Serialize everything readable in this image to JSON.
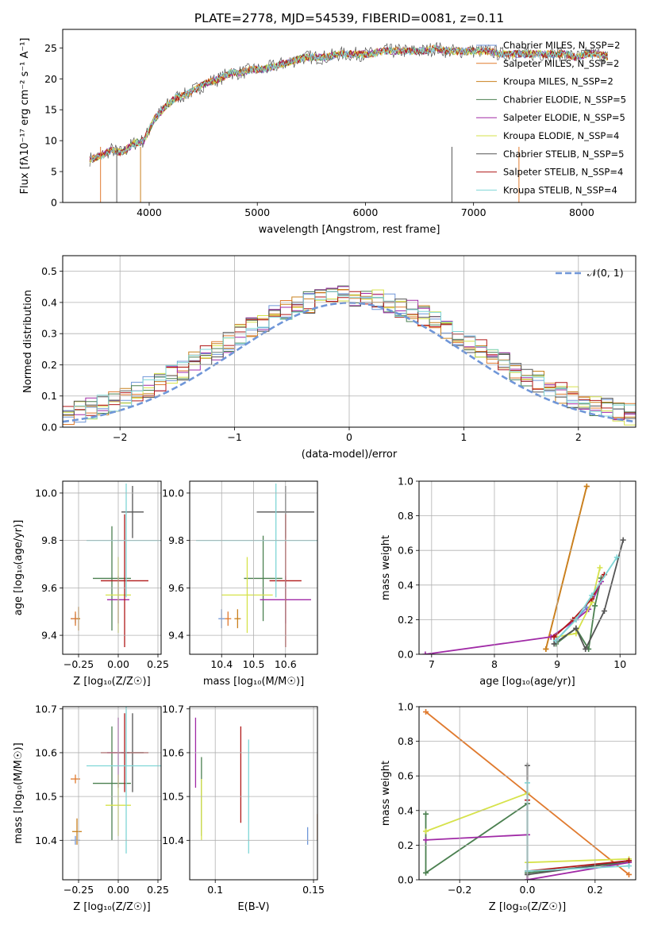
{
  "title": "PLATE=2778, MJD=54539, FIBERID=0081, z=0.11",
  "model_colors": [
    "#6f96d8",
    "#e07a2e",
    "#c9811e",
    "#4b8050",
    "#a02aa6",
    "#d6e24a",
    "#555555",
    "#b01818",
    "#7fd6d6"
  ],
  "chart_data": [
    {
      "id": "spectrum",
      "type": "line",
      "title": "PLATE=2778, MJD=54539, FIBERID=0081, z=0.11",
      "xlabel": "wavelength [Angstrom, rest frame]",
      "ylabel": "Flux [fλ10⁻¹⁷ erg cm⁻² s⁻¹ A⁻¹]",
      "xlim": [
        3200,
        8500
      ],
      "ylim": [
        0,
        28
      ],
      "xticks": [
        4000,
        5000,
        6000,
        7000,
        8000
      ],
      "yticks": [
        0,
        5,
        10,
        15,
        20,
        25
      ],
      "grid": false,
      "legend_position": "right",
      "legend": [
        "Chabrier MILES, N_SSP=2",
        "Salpeter MILES, N_SSP=2",
        "Kroupa MILES, N_SSP=2",
        "Chabrier ELODIE, N_SSP=5",
        "Salpeter ELODIE, N_SSP=5",
        "Kroupa ELODIE, N_SSP=4",
        "Chabrier STELIB, N_SSP=5",
        "Salpeter STELIB, N_SSP=4",
        "Kroupa STELIB, N_SSP=4"
      ],
      "x": [
        3450,
        3550,
        3650,
        3750,
        3850,
        3950,
        4050,
        4150,
        4250,
        4350,
        4450,
        4550,
        4650,
        4750,
        4850,
        4950,
        5050,
        5150,
        5250,
        5350,
        5450,
        5550,
        5650,
        5750,
        5850,
        5950,
        6050,
        6150,
        6250,
        6350,
        6450,
        6550,
        6650,
        6750,
        6850,
        6950,
        7050,
        7150,
        7250,
        7350,
        7450,
        7550,
        7650,
        7750,
        7850,
        7950,
        8050,
        8150,
        8250
      ],
      "y": [
        7.0,
        7.5,
        8.5,
        8.0,
        9.5,
        10.0,
        13.5,
        15.5,
        17.0,
        17.5,
        18.5,
        19.5,
        20.0,
        21.0,
        21.0,
        21.5,
        21.5,
        22.0,
        22.5,
        23.0,
        23.5,
        23.5,
        23.5,
        24.0,
        24.0,
        24.0,
        24.0,
        24.5,
        24.5,
        24.5,
        24.5,
        24.5,
        25.0,
        24.5,
        24.5,
        24.5,
        24.5,
        24.5,
        24.0,
        24.0,
        24.0,
        24.0,
        24.0,
        24.0,
        24.0,
        23.5,
        24.0,
        24.0,
        23.5
      ]
    },
    {
      "id": "residuals",
      "type": "histogram",
      "xlabel": "(data-model)/error",
      "ylabel": "Normed distribution",
      "xlim": [
        -2.5,
        2.5
      ],
      "ylim": [
        0,
        0.55
      ],
      "xticks": [
        -2,
        -1,
        0,
        1,
        2
      ],
      "yticks": [
        0.0,
        0.1,
        0.2,
        0.3,
        0.4,
        0.5
      ],
      "grid": true,
      "legend_position": "top-right",
      "legend": [
        "𝒩(0, 1)"
      ],
      "bin_width": 0.1
    },
    {
      "id": "age-vs-Z",
      "type": "scatter",
      "xlabel": "Z [log₁₀(Z/Z☉)]",
      "ylabel": "age  [log₁₀(age/yr)]",
      "xlim": [
        -0.35,
        0.27
      ],
      "ylim": [
        9.32,
        10.05
      ],
      "xticks": [
        -0.25,
        0.0,
        0.25
      ],
      "xtick_labels": [
        "−0.25",
        "0.00",
        "0.25"
      ],
      "yticks": [
        9.4,
        9.6,
        9.8,
        10.0
      ],
      "grid": true,
      "points": [
        {
          "model": 0,
          "x": -0.27,
          "y": 9.47,
          "xerr": 0.03,
          "yerr": 0.02
        },
        {
          "model": 1,
          "x": -0.27,
          "y": 9.47,
          "xerr": 0.03,
          "yerr": 0.03
        },
        {
          "model": 2,
          "x": -0.25,
          "y": 9.47,
          "xerr": 0.01,
          "yerr": 0.05
        },
        {
          "model": 3,
          "x": -0.04,
          "y": 9.64,
          "xerr": 0.12,
          "yerr": 0.22
        },
        {
          "model": 4,
          "x": 0.0,
          "y": 9.55,
          "xerr": 0.07,
          "yerr": 0.1
        },
        {
          "model": 5,
          "x": 0.0,
          "y": 9.57,
          "xerr": 0.08,
          "yerr": 0.16
        },
        {
          "model": 6,
          "x": 0.09,
          "y": 9.92,
          "xerr": 0.07,
          "yerr": 0.11
        },
        {
          "model": 7,
          "x": 0.04,
          "y": 9.63,
          "xerr": 0.15,
          "yerr": 0.28
        },
        {
          "model": 8,
          "x": 0.05,
          "y": 9.8,
          "xerr": 0.25,
          "yerr": 0.24
        }
      ]
    },
    {
      "id": "age-vs-mass",
      "type": "scatter",
      "xlabel": "mass [log₁₀(M/M☉)]",
      "ylabel": "",
      "xlim": [
        10.3,
        10.7
      ],
      "ylim": [
        9.32,
        10.05
      ],
      "xticks": [
        10.4,
        10.5,
        10.6
      ],
      "yticks": [
        9.4,
        9.6,
        9.8,
        10.0
      ],
      "grid": true,
      "points": [
        {
          "model": 0,
          "x": 10.4,
          "y": 9.47,
          "xerr": 0.01,
          "yerr": 0.04
        },
        {
          "model": 1,
          "x": 10.42,
          "y": 9.47,
          "xerr": 0.01,
          "yerr": 0.03
        },
        {
          "model": 2,
          "x": 10.45,
          "y": 9.47,
          "xerr": 0.01,
          "yerr": 0.04
        },
        {
          "model": 3,
          "x": 10.53,
          "y": 9.64,
          "xerr": 0.06,
          "yerr": 0.18
        },
        {
          "model": 4,
          "x": 10.6,
          "y": 9.55,
          "xerr": 0.08,
          "yerr": 0.1
        },
        {
          "model": 5,
          "x": 10.48,
          "y": 9.57,
          "xerr": 0.08,
          "yerr": 0.16
        },
        {
          "model": 6,
          "x": 10.6,
          "y": 9.92,
          "xerr": 0.09,
          "yerr": 0.11
        },
        {
          "model": 7,
          "x": 10.6,
          "y": 9.63,
          "xerr": 0.05,
          "yerr": 0.28
        },
        {
          "model": 8,
          "x": 10.57,
          "y": 9.8,
          "xerr": 0.25,
          "yerr": 0.24
        }
      ]
    },
    {
      "id": "massweight-vs-age",
      "type": "line",
      "xlabel": "age  [log₁₀(age/yr)]",
      "ylabel": "mass weight",
      "xlim": [
        6.8,
        10.25
      ],
      "ylim": [
        0,
        1
      ],
      "xticks": [
        7,
        8,
        9,
        10
      ],
      "yticks": [
        0.0,
        0.2,
        0.4,
        0.6,
        0.8,
        1.0
      ],
      "grid": true,
      "series": [
        {
          "model": 0,
          "x": [
            8.98,
            9.47
          ],
          "y": [
            0.08,
            0.27
          ]
        },
        {
          "model": 1,
          "x": [
            8.82,
            9.47
          ],
          "y": [
            0.03,
            0.97
          ]
        },
        {
          "model": 2,
          "x": [
            8.82,
            9.47
          ],
          "y": [
            0.03,
            0.97
          ]
        },
        {
          "model": 3,
          "x": [
            8.98,
            9.3,
            9.5,
            9.6,
            9.7
          ],
          "y": [
            0.06,
            0.15,
            0.03,
            0.28,
            0.44
          ]
        },
        {
          "model": 4,
          "x": [
            6.9,
            8.9,
            9.3,
            9.5,
            9.7
          ],
          "y": [
            0.0,
            0.1,
            0.2,
            0.26,
            0.42
          ]
        },
        {
          "model": 5,
          "x": [
            8.98,
            9.3,
            9.55,
            9.68
          ],
          "y": [
            0.1,
            0.12,
            0.3,
            0.5
          ]
        },
        {
          "model": 6,
          "x": [
            8.95,
            9.3,
            9.45,
            9.75,
            10.05
          ],
          "y": [
            0.06,
            0.15,
            0.03,
            0.25,
            0.66
          ]
        },
        {
          "model": 7,
          "x": [
            8.95,
            9.25,
            9.55,
            9.75
          ],
          "y": [
            0.1,
            0.2,
            0.32,
            0.46
          ]
        },
        {
          "model": 8,
          "x": [
            8.98,
            9.3,
            9.55,
            9.95
          ],
          "y": [
            0.08,
            0.2,
            0.34,
            0.56
          ]
        }
      ]
    },
    {
      "id": "mass-vs-Z",
      "type": "scatter",
      "xlabel": "Z [log₁₀(Z/Z☉)]",
      "ylabel": "mass [log₁₀(M/M☉)]",
      "xlim": [
        -0.35,
        0.27
      ],
      "ylim": [
        10.31,
        10.705
      ],
      "xticks": [
        -0.25,
        0.0,
        0.25
      ],
      "xtick_labels": [
        "−0.25",
        "0.00",
        "0.25"
      ],
      "yticks": [
        10.4,
        10.5,
        10.6,
        10.7
      ],
      "grid": true,
      "points": [
        {
          "model": 0,
          "x": -0.27,
          "y": 10.4,
          "xerr": 0.03,
          "yerr": 0.01
        },
        {
          "model": 1,
          "x": -0.27,
          "y": 10.54,
          "xerr": 0.03,
          "yerr": 0.01
        },
        {
          "model": 2,
          "x": -0.26,
          "y": 10.42,
          "xerr": 0.03,
          "yerr": 0.03
        },
        {
          "model": 3,
          "x": -0.04,
          "y": 10.53,
          "xerr": 0.12,
          "yerr": 0.13
        },
        {
          "model": 4,
          "x": 0.0,
          "y": 10.6,
          "xerr": 0.07,
          "yerr": 0.08
        },
        {
          "model": 5,
          "x": 0.0,
          "y": 10.48,
          "xerr": 0.08,
          "yerr": 0.07
        },
        {
          "model": 6,
          "x": 0.09,
          "y": 10.6,
          "xerr": 0.07,
          "yerr": 0.09
        },
        {
          "model": 7,
          "x": 0.04,
          "y": 10.6,
          "xerr": 0.15,
          "yerr": 0.09
        },
        {
          "model": 8,
          "x": 0.05,
          "y": 10.57,
          "xerr": 0.25,
          "yerr": 0.2
        }
      ]
    },
    {
      "id": "mass-vs-ebv",
      "type": "scatter",
      "xlabel": "E(B-V)",
      "ylabel": "",
      "xlim": [
        0.087,
        0.152
      ],
      "ylim": [
        10.31,
        10.705
      ],
      "xticks": [
        0.1,
        0.15
      ],
      "yticks": [
        10.4,
        10.5,
        10.6,
        10.7
      ],
      "grid": true,
      "points": [
        {
          "model": 0,
          "x": 0.147,
          "y": 10.41,
          "xerr": 0.0,
          "yerr": 0.02
        },
        {
          "model": 1,
          "x": 0.152,
          "y": 10.43,
          "xerr": 0.0,
          "yerr": 0.03
        },
        {
          "model": 4,
          "x": 0.09,
          "y": 10.6,
          "xerr": 0.0,
          "yerr": 0.08
        },
        {
          "model": 3,
          "x": 0.093,
          "y": 10.5,
          "xerr": 0.0,
          "yerr": 0.09
        },
        {
          "model": 5,
          "x": 0.093,
          "y": 10.47,
          "xerr": 0.0,
          "yerr": 0.07
        },
        {
          "model": 7,
          "x": 0.113,
          "y": 10.55,
          "xerr": 0.0,
          "yerr": 0.11
        },
        {
          "model": 8,
          "x": 0.117,
          "y": 10.5,
          "xerr": 0.0,
          "yerr": 0.13
        }
      ]
    },
    {
      "id": "massweight-vs-Z",
      "type": "line",
      "xlabel": "Z [log₁₀(Z/Z☉)]",
      "ylabel": "mass weight",
      "xlim": [
        -0.32,
        0.32
      ],
      "ylim": [
        0,
        1
      ],
      "xticks": [
        -0.2,
        0.0,
        0.2
      ],
      "xtick_labels": [
        "−0.2",
        "0.0",
        "0.2"
      ],
      "yticks": [
        0.0,
        0.2,
        0.4,
        0.6,
        0.8,
        1.0
      ],
      "grid": true,
      "series": [
        {
          "model": 1,
          "x": [
            -0.3,
            0.3
          ],
          "y": [
            0.97,
            0.03
          ]
        },
        {
          "model": 3,
          "x": [
            -0.3,
            -0.3,
            0.0,
            0.0,
            0.3
          ],
          "y": [
            0.38,
            0.04,
            0.44,
            0.04,
            0.1
          ]
        },
        {
          "model": 4,
          "x": [
            -0.3,
            0.0,
            0.0,
            0.3
          ],
          "y": [
            0.23,
            0.26,
            0.0,
            0.1
          ]
        },
        {
          "model": 5,
          "x": [
            -0.3,
            0.0,
            0.0,
            0.3
          ],
          "y": [
            0.28,
            0.5,
            0.1,
            0.12
          ]
        },
        {
          "model": 6,
          "x": [
            0.0,
            0.0,
            0.3
          ],
          "y": [
            0.66,
            0.03,
            0.11
          ]
        },
        {
          "model": 7,
          "x": [
            0.0,
            0.0,
            0.3
          ],
          "y": [
            0.46,
            0.05,
            0.11
          ]
        },
        {
          "model": 8,
          "x": [
            0.0,
            0.0,
            0.3
          ],
          "y": [
            0.56,
            0.05,
            0.08
          ]
        }
      ]
    }
  ]
}
